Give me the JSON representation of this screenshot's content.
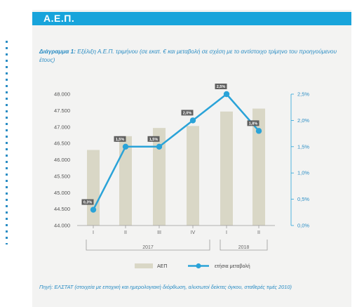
{
  "header": {
    "title": "Α.Ε.Π."
  },
  "caption": {
    "prefix": "Διάγραμμα 1:",
    "text": "Εξέλιξη Α.Ε.Π. τριμήνου (σε εκατ. € και μεταβολή σε σχέση με το αντίστοιχο τρίμηνο του προηγούμενου έτους)"
  },
  "source": "Πηγή: ΕΛΣΤΑΤ (στοιχεία με εποχική και ημερολογιακή διόρθωση, αλυσωτοί δείκτες όγκου, σταθερές τιμές 2010)",
  "colors": {
    "bar": "#d9d7c6",
    "line": "#2aa3d8",
    "accent": "#18a4db",
    "label_bg": "#5f5f5f"
  },
  "chart_data": {
    "type": "bar",
    "categories": [
      "I",
      "II",
      "III",
      "IV",
      "I",
      "II"
    ],
    "groups": [
      {
        "label": "2017",
        "from": 0,
        "to": 3
      },
      {
        "label": "2018",
        "from": 4,
        "to": 5
      }
    ],
    "series": [
      {
        "name": "ΑΕΠ",
        "type": "bar",
        "axis": "left",
        "values": [
          46300,
          46720,
          46970,
          47030,
          47470,
          47560
        ]
      },
      {
        "name": "ετήσια μεταβολή",
        "type": "line",
        "axis": "right",
        "values": [
          0.3,
          1.5,
          1.5,
          2.0,
          2.5,
          1.8
        ]
      }
    ],
    "data_labels": [
      "0,3%",
      "1,5%",
      "1,5%",
      "2,0%",
      "2,5%",
      "1,8%"
    ],
    "yleft": {
      "ylim": [
        44000,
        48000
      ],
      "ticks": [
        "44.000",
        "44.500",
        "45.000",
        "45.500",
        "46.000",
        "46.500",
        "47.000",
        "47.500",
        "48.000"
      ]
    },
    "yright": {
      "ylim": [
        0,
        2.5
      ],
      "ticks": [
        "0,0%",
        "0,5%",
        "1,0%",
        "1,5%",
        "2,0%",
        "2,5%"
      ]
    },
    "grid": false,
    "legend": "bottom-center"
  }
}
